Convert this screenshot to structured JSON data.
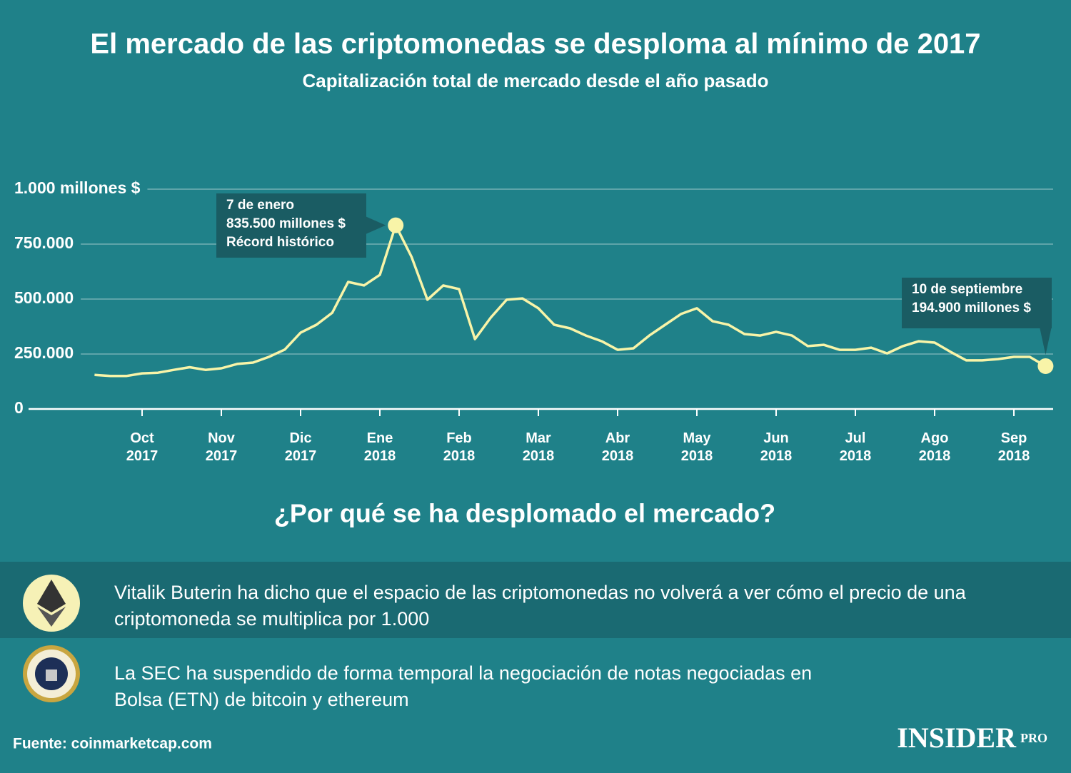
{
  "chart_data": {
    "type": "line",
    "title": "El mercado de las criptomonedas se desploma al mínimo de 2017",
    "subtitle": "Capitalización total de mercado desde el año pasado",
    "categories": [
      null,
      null,
      null,
      "Oct 2017",
      null,
      null,
      null,
      null,
      "Nov 2017",
      null,
      null,
      null,
      null,
      "Dic 2017",
      null,
      null,
      null,
      null,
      "Ene 2018",
      null,
      null,
      null,
      null,
      "Feb 2018",
      null,
      null,
      null,
      null,
      "Mar 2018",
      null,
      null,
      null,
      null,
      "Abr 2018",
      null,
      null,
      null,
      null,
      "May 2018",
      null,
      null,
      null,
      null,
      "Jun 2018",
      null,
      null,
      null,
      null,
      "Jul 2018",
      null,
      null,
      null,
      null,
      "Ago 2018",
      null,
      null,
      null,
      null,
      "Sep 2018",
      null,
      null
    ],
    "values": [
      155000,
      150000,
      150000,
      162000,
      165000,
      178000,
      190000,
      178000,
      185000,
      205000,
      211000,
      237000,
      270000,
      347000,
      383000,
      438000,
      578000,
      562000,
      610000,
      835500,
      692000,
      497000,
      562000,
      545000,
      318000,
      416000,
      497000,
      503000,
      458000,
      383000,
      367000,
      334000,
      308000,
      269000,
      276000,
      334000,
      383000,
      432000,
      458000,
      399000,
      383000,
      341000,
      334000,
      351000,
      334000,
      286000,
      292000,
      269000,
      269000,
      279000,
      253000,
      286000,
      308000,
      302000,
      260000,
      221000,
      221000,
      227000,
      237000,
      237000,
      194900
    ],
    "color": "#f8f4a8",
    "ylim": [
      0,
      1000000
    ],
    "yticks": [
      0,
      {
        "value": 250000,
        "label": "250.000"
      },
      {
        "value": 500000,
        "label": "500.000"
      },
      {
        "value": 750000,
        "label": "750.000"
      },
      {
        "value": 1000000,
        "label": "1.000 millones $"
      }
    ],
    "grid": true,
    "annotations": [
      {
        "lines": [
          "7 de enero",
          "835.500 millones $",
          "Récord histórico"
        ]
      },
      {
        "lines": [
          "10 de septiembre",
          "194.900 millones $"
        ]
      }
    ]
  },
  "question": "¿Por qué se ha desplomado el mercado?",
  "reasons": [
    "Vitalik Buterin ha dicho que el espacio de las criptomonedas no volverá a ver cómo el precio de una criptomoneda se multiplica por 1.000",
    "La SEC ha suspendido de forma temporal la negociación de notas negociadas en Bolsa (ETN) de bitcoin y ethereum"
  ],
  "source": "Fuente: coinmarketcap.com",
  "logo": "INSIDER",
  "logo_sub": "PRO"
}
